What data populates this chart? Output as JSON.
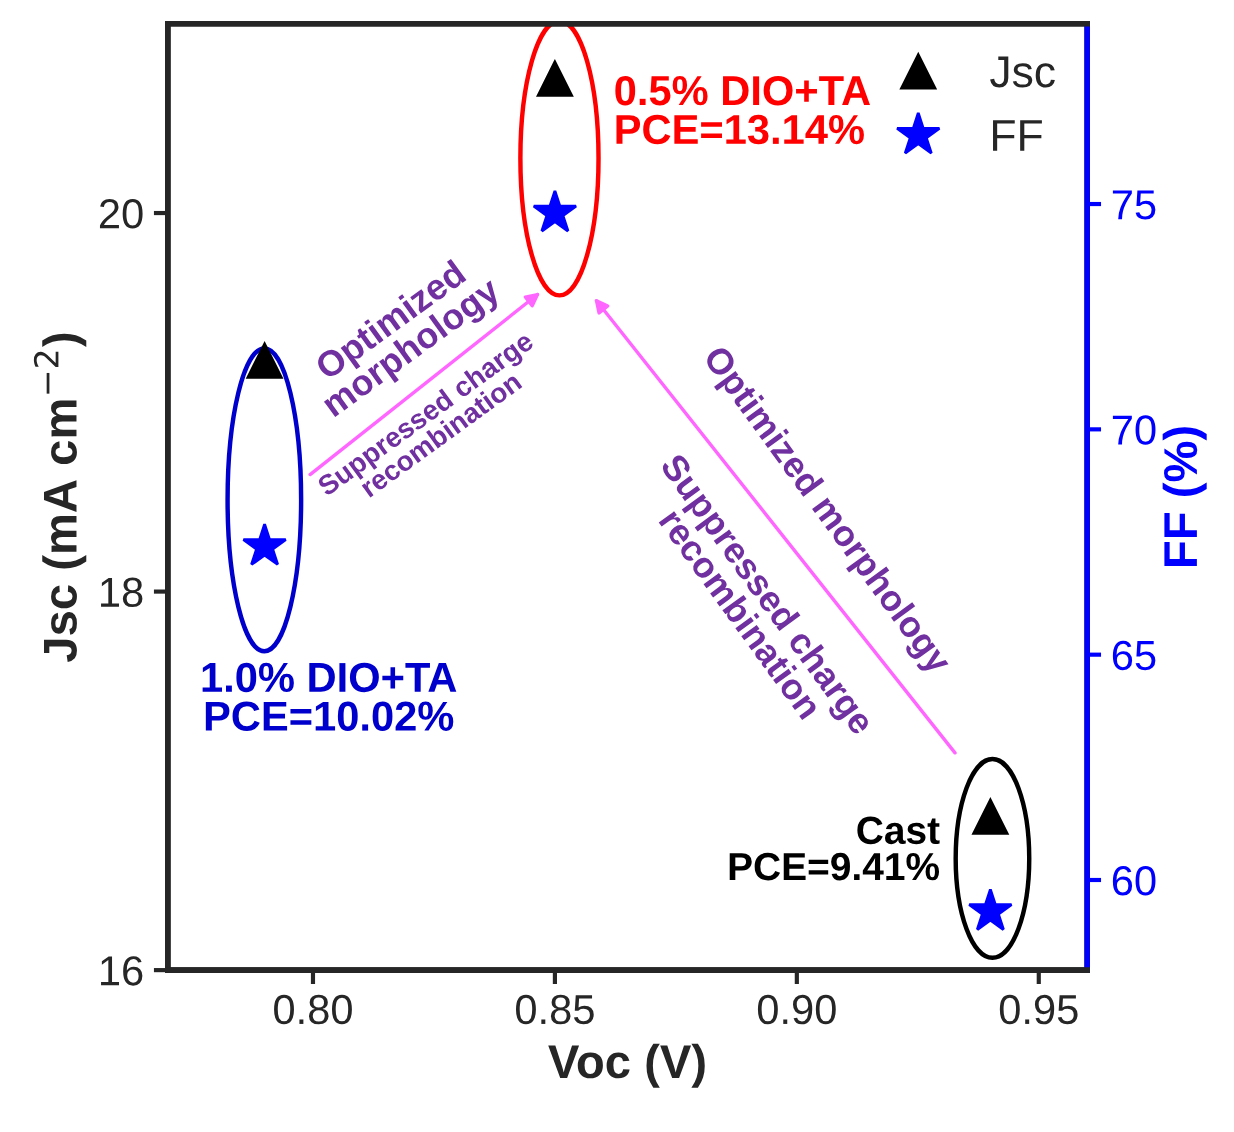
{
  "chart_data": {
    "type": "scatter",
    "xlabel": "Voc (V)",
    "ylabel": "Jsc (mA cm$^{−2}$)",
    "y2label": "FF (%)",
    "x": [
      0.79,
      0.85,
      0.94
    ],
    "series": [
      {
        "name": "Jsc",
        "color": "#000000",
        "marker": "triangle",
        "values": [
          19.22,
          20.71,
          16.81
        ]
      },
      {
        "name": "FF",
        "color": "#0000ff",
        "marker": "star",
        "axis": "y2",
        "values": [
          67.4,
          74.8,
          59.3
        ]
      }
    ],
    "xlim": [
      0.77,
      0.96
    ],
    "xticks": [
      {
        "value": 0.8,
        "label": "0.80"
      },
      0.85,
      {
        "value": 0.9,
        "label": "0.90"
      },
      0.95
    ],
    "ylim": [
      16,
      21
    ],
    "yticks": [
      16,
      18,
      20
    ],
    "y2lim": [
      58,
      79
    ],
    "y2ticks": [
      60,
      65,
      70,
      75
    ],
    "legend": "top right",
    "grid": false,
    "annotations": [
      "1.0% DIO+TA\nPCE=10.02%",
      "0.5% DIO+TA\nPCE=13.14%",
      "Cast\nPCE=9.41%",
      "Optimized\nmorphology",
      "Suppressed charge\nrecombination",
      "Optimized morphology",
      "Suppressed charge\nrecombination"
    ]
  }
}
